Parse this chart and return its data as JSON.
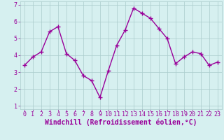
{
  "x": [
    0,
    1,
    2,
    3,
    4,
    5,
    6,
    7,
    8,
    9,
    10,
    11,
    12,
    13,
    14,
    15,
    16,
    17,
    18,
    19,
    20,
    21,
    22,
    23
  ],
  "y": [
    3.4,
    3.9,
    4.2,
    5.4,
    5.7,
    4.1,
    3.7,
    2.8,
    2.5,
    1.5,
    3.1,
    4.6,
    5.5,
    6.8,
    6.5,
    6.2,
    5.6,
    5.0,
    3.5,
    3.9,
    4.2,
    4.1,
    3.4,
    3.6
  ],
  "line_color": "#990099",
  "marker": "+",
  "bg_color": "#d6f0f0",
  "grid_color": "#aacccc",
  "xlabel": "Windchill (Refroidissement éolien,°C)",
  "xlim": [
    -0.5,
    23.5
  ],
  "ylim": [
    0.8,
    7.2
  ],
  "xticks": [
    0,
    1,
    2,
    3,
    4,
    5,
    6,
    7,
    8,
    9,
    10,
    11,
    12,
    13,
    14,
    15,
    16,
    17,
    18,
    19,
    20,
    21,
    22,
    23
  ],
  "yticks": [
    1,
    2,
    3,
    4,
    5,
    6,
    7
  ],
  "axis_label_color": "#990099",
  "tick_color": "#990099",
  "xlabel_fontsize": 7.0,
  "tick_fontsize": 6.0,
  "linewidth": 1.0,
  "markersize": 4,
  "markeredgewidth": 1.0
}
